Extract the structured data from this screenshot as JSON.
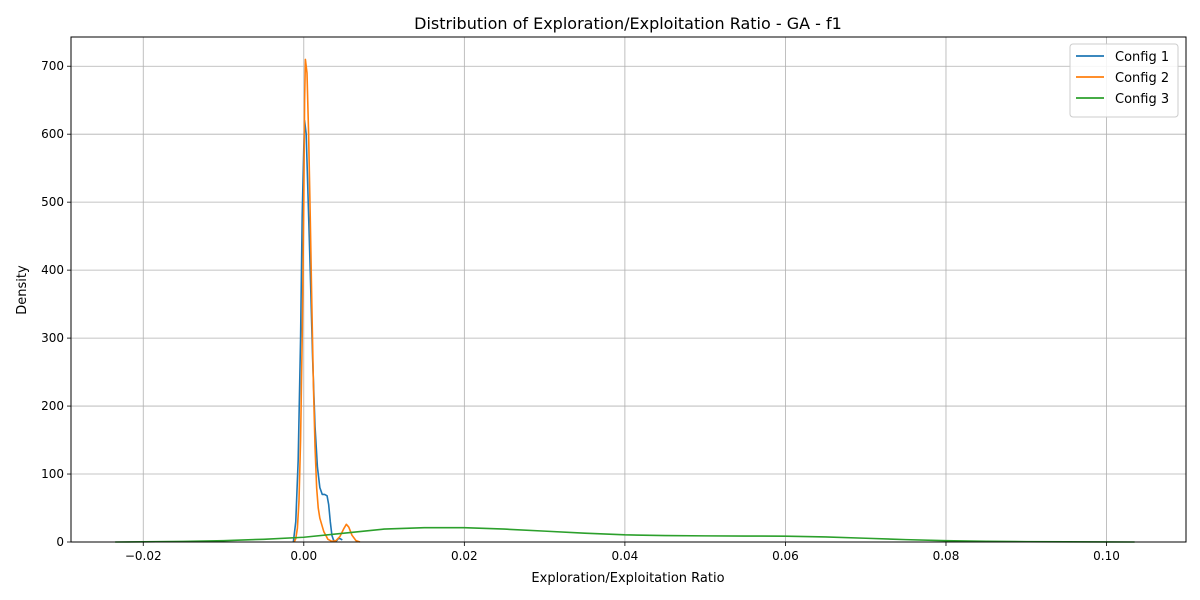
{
  "chart_data": {
    "type": "line",
    "title": "Distribution of Exploration/Exploitation Ratio - GA - f1",
    "xlabel": "Exploration/Exploitation Ratio",
    "ylabel": "Density",
    "xlim": [
      -0.029,
      0.1099
    ],
    "ylim": [
      0,
      743
    ],
    "xticks": [
      -0.02,
      0.0,
      0.02,
      0.04,
      0.06,
      0.08,
      0.1
    ],
    "xtick_labels": [
      "−0.02",
      "0.00",
      "0.02",
      "0.04",
      "0.06",
      "0.08",
      "0.10"
    ],
    "yticks": [
      0,
      100,
      200,
      300,
      400,
      500,
      600,
      700
    ],
    "ytick_labels": [
      "0",
      "100",
      "200",
      "300",
      "400",
      "500",
      "600",
      "700"
    ],
    "grid": true,
    "legend_position": "top-right",
    "series": [
      {
        "name": "Config 1",
        "color": "#1f77b4",
        "x": [
          -0.0013,
          -0.001,
          -0.0007,
          -0.0004,
          -0.0002,
          0.0,
          0.0001,
          0.0003,
          0.0005,
          0.0008,
          0.0011,
          0.0014,
          0.0017,
          0.002,
          0.0023,
          0.0026,
          0.0029,
          0.0031,
          0.0033,
          0.0035,
          0.0037,
          0.0039,
          0.0041,
          0.0043,
          0.0045,
          0.0048
        ],
        "y": [
          0,
          30,
          120,
          300,
          480,
          580,
          620,
          600,
          520,
          400,
          270,
          170,
          110,
          80,
          70,
          70,
          68,
          55,
          30,
          10,
          3,
          1,
          2,
          5,
          5,
          3
        ]
      },
      {
        "name": "Config 2",
        "color": "#ff7f0e",
        "x": [
          -0.0012,
          -0.001,
          -0.0008,
          -0.0006,
          -0.0004,
          -0.0002,
          0.0,
          0.0001,
          0.0002,
          0.0004,
          0.0006,
          0.0008,
          0.001,
          0.0012,
          0.0014,
          0.0016,
          0.0018,
          0.002,
          0.0025,
          0.003,
          0.0035,
          0.004,
          0.0045,
          0.005,
          0.0053,
          0.0056,
          0.006,
          0.0065,
          0.007
        ],
        "y": [
          0,
          5,
          20,
          60,
          150,
          300,
          500,
          650,
          710,
          690,
          600,
          480,
          350,
          230,
          140,
          80,
          50,
          35,
          15,
          4,
          1,
          2,
          8,
          20,
          26,
          22,
          10,
          2,
          0
        ],
        "__note": ""
      },
      {
        "name": "Config 3",
        "color": "#2ca02c",
        "x": [
          -0.0235,
          -0.02,
          -0.015,
          -0.01,
          -0.005,
          0.0,
          0.005,
          0.01,
          0.015,
          0.02,
          0.025,
          0.03,
          0.035,
          0.04,
          0.045,
          0.05,
          0.055,
          0.06,
          0.065,
          0.07,
          0.075,
          0.08,
          0.085,
          0.09,
          0.095,
          0.1,
          0.1035
        ],
        "y": [
          0,
          0.3,
          0.8,
          2,
          4,
          7,
          13,
          19,
          21,
          21,
          19,
          16,
          13,
          10.5,
          9.5,
          9,
          8.8,
          8.5,
          7.5,
          5.5,
          3.5,
          2,
          1,
          0.5,
          0.2,
          0.05,
          0
        ]
      }
    ]
  }
}
